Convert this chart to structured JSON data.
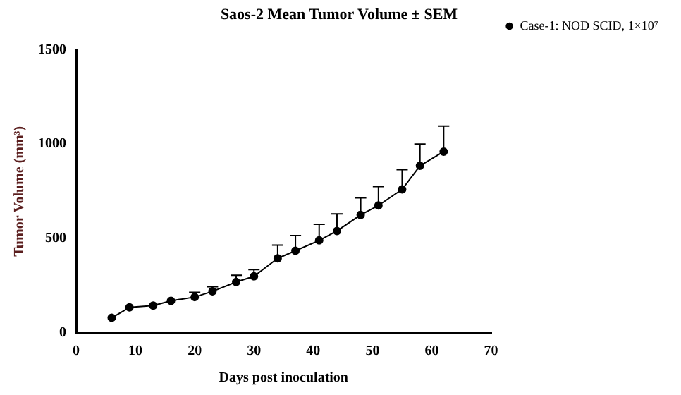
{
  "chart_data": {
    "type": "line",
    "title": "Saos-2 Mean Tumor Volume ± SEM",
    "xlabel": "Days post inoculation",
    "ylabel": "Tumor Volume (mm³)",
    "x": [
      6,
      9,
      13,
      16,
      20,
      23,
      27,
      30,
      34,
      37,
      41,
      44,
      48,
      51,
      55,
      58,
      62
    ],
    "series": [
      {
        "name": "Case-1: NOD SCID, 1×10⁷",
        "color": "#000000",
        "values": [
          80,
          135,
          145,
          170,
          190,
          220,
          270,
          300,
          395,
          435,
          490,
          540,
          625,
          675,
          760,
          885,
          960
        ],
        "errors": [
          null,
          null,
          null,
          null,
          [
            190,
            215
          ],
          [
            220,
            245
          ],
          [
            270,
            305
          ],
          [
            300,
            335
          ],
          [
            395,
            465
          ],
          [
            435,
            515
          ],
          [
            490,
            575
          ],
          [
            540,
            630
          ],
          [
            625,
            715
          ],
          [
            675,
            775
          ],
          [
            760,
            865
          ],
          [
            885,
            1000
          ],
          [
            960,
            1095
          ]
        ]
      }
    ],
    "xlim": [
      0,
      70
    ],
    "xticks": [
      0,
      10,
      20,
      30,
      40,
      50,
      60,
      70
    ],
    "ylim": [
      0,
      1500
    ],
    "yticks": [
      0,
      500,
      1000,
      1500
    ],
    "grid": false,
    "legend": "top right",
    "marker": "circle",
    "line_style": "solid"
  }
}
